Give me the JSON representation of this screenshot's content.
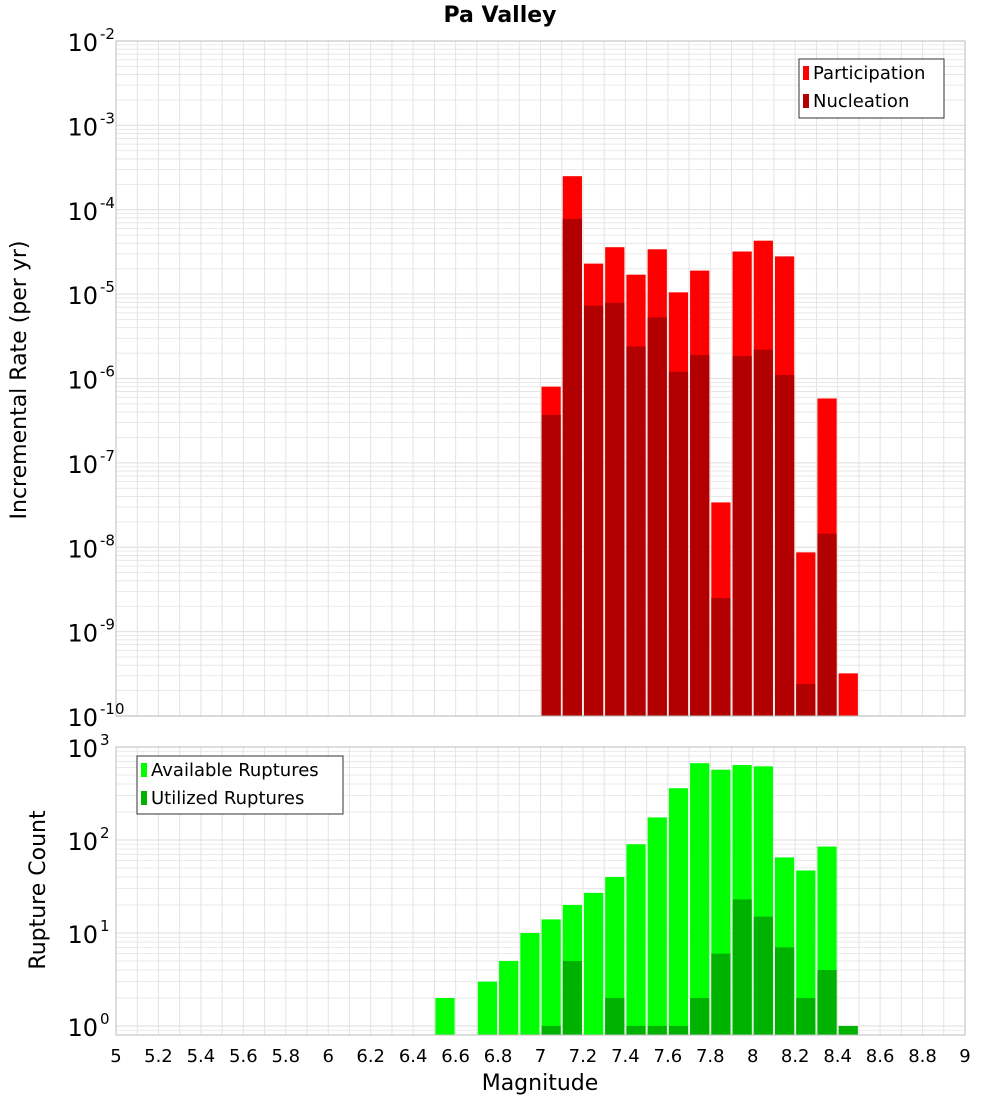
{
  "colors": {
    "participation": "#ff0000",
    "nucleation": "#b20000",
    "available": "#00ff00",
    "utilized": "#00b200",
    "grid": "#e3e3e3",
    "frame": "#bdbdbd"
  },
  "chart_data": [
    {
      "type": "bar",
      "title": "Pa Valley",
      "xlabel": "",
      "ylabel": "Incremental Rate (per yr)",
      "xlim": [
        5,
        9
      ],
      "ylim": [
        1e-10,
        0.01
      ],
      "yscale": "log",
      "grid": true,
      "legend": "top-right",
      "x": [
        7.05,
        7.15,
        7.25,
        7.35,
        7.45,
        7.55,
        7.65,
        7.75,
        7.85,
        7.95,
        8.05,
        8.15,
        8.25,
        8.35,
        8.45
      ],
      "series": [
        {
          "name": "Participation",
          "color": "#ff0000",
          "values": [
            8e-07,
            0.00025,
            2.3e-05,
            3.6e-05,
            1.7e-05,
            3.4e-05,
            1.05e-05,
            1.9e-05,
            3.4e-08,
            3.2e-05,
            4.3e-05,
            2.8e-05,
            8.7e-09,
            5.8e-07,
            3.2e-10
          ]
        },
        {
          "name": "Nucleation",
          "color": "#b20000",
          "values": [
            3.7e-07,
            7.8e-05,
            7.3e-06,
            7.9e-06,
            2.4e-06,
            5.3e-06,
            1.2e-06,
            1.9e-06,
            2.5e-09,
            1.85e-06,
            2.2e-06,
            1.1e-06,
            2.4e-10,
            1.45e-08,
            null
          ]
        }
      ],
      "y_ticks": [
        {
          "base": "10",
          "exp": "-10",
          "value": 1e-10
        },
        {
          "base": "10",
          "exp": "-9",
          "value": 1e-09
        },
        {
          "base": "10",
          "exp": "-8",
          "value": 1e-08
        },
        {
          "base": "10",
          "exp": "-7",
          "value": 1e-07
        },
        {
          "base": "10",
          "exp": "-6",
          "value": 1e-06
        },
        {
          "base": "10",
          "exp": "-5",
          "value": 1e-05
        },
        {
          "base": "10",
          "exp": "-4",
          "value": 0.0001
        },
        {
          "base": "10",
          "exp": "-3",
          "value": 0.001
        },
        {
          "base": "10",
          "exp": "-2",
          "value": 0.01
        }
      ]
    },
    {
      "type": "bar",
      "title": "",
      "xlabel": "Magnitude",
      "ylabel": "Rupture Count",
      "xlim": [
        5,
        9
      ],
      "ylim": [
        0.8,
        1000
      ],
      "yscale": "log",
      "grid": true,
      "legend": "top-left",
      "x": [
        6.55,
        6.75,
        6.85,
        6.95,
        7.05,
        7.15,
        7.25,
        7.35,
        7.45,
        7.55,
        7.65,
        7.75,
        7.85,
        7.95,
        8.05,
        8.15,
        8.25,
        8.35,
        8.45
      ],
      "series": [
        {
          "name": "Available Ruptures",
          "color": "#00ff00",
          "values": [
            2,
            3,
            5,
            10,
            14,
            20,
            27,
            40,
            90,
            175,
            360,
            670,
            570,
            640,
            620,
            65,
            47,
            85,
            null
          ]
        },
        {
          "name": "Utilized Ruptures",
          "color": "#00b200",
          "values": [
            null,
            null,
            null,
            null,
            1,
            5,
            null,
            2,
            1,
            1,
            1,
            2,
            6,
            23,
            15,
            7,
            2,
            4,
            1
          ]
        }
      ],
      "x_ticks": [
        "5",
        "5.2",
        "5.4",
        "5.6",
        "5.8",
        "6",
        "6.2",
        "6.4",
        "6.6",
        "6.8",
        "7",
        "7.2",
        "7.4",
        "7.6",
        "7.8",
        "8",
        "8.2",
        "8.4",
        "8.6",
        "8.8",
        "9"
      ],
      "y_ticks": [
        {
          "base": "10",
          "exp": "0",
          "value": 1
        },
        {
          "base": "10",
          "exp": "1",
          "value": 10
        },
        {
          "base": "10",
          "exp": "2",
          "value": 100
        },
        {
          "base": "10",
          "exp": "3",
          "value": 1000
        }
      ]
    }
  ]
}
